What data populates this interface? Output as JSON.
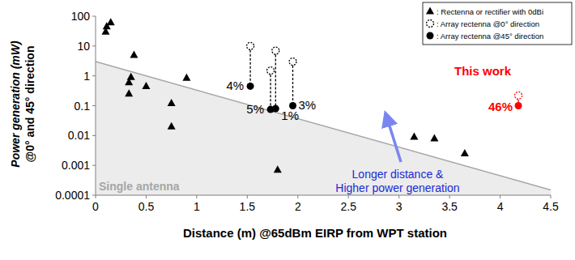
{
  "chart_data": {
    "type": "scatter",
    "x_label": "Distance (m) @65dBm EIRP from WPT station",
    "y_label": [
      "Power generation (mW)",
      "@0° and 45° direction"
    ],
    "xlim": [
      0,
      4.5
    ],
    "xticks": [
      0,
      0.5,
      1,
      1.5,
      2,
      2.5,
      3,
      3.5,
      4,
      4.5
    ],
    "ylim": [
      0.0001,
      100
    ],
    "yticks": [
      0.0001,
      0.001,
      0.01,
      0.1,
      1,
      10,
      100
    ],
    "log": "y",
    "grid": false,
    "legend": "top-right",
    "series": [
      {
        "name": ": Rectenna or rectifier with 0dBi",
        "marker": "triangle",
        "color": "#000000",
        "x": [
          0.1,
          0.11,
          0.15,
          0.38,
          0.33,
          0.35,
          0.33,
          0.5,
          0.9,
          0.75,
          0.75,
          1.8,
          3.15,
          3.35,
          3.65
        ],
        "values": [
          30,
          45,
          62,
          5,
          0.6,
          0.9,
          0.25,
          0.45,
          0.85,
          0.12,
          0.02,
          0.0007,
          0.009,
          0.008,
          0.0025
        ]
      },
      {
        "name": ": Array rectenna @0°   direction",
        "marker": "open-circle",
        "line_style": "dashed",
        "color": "#000000",
        "colors": [
          "#000000",
          "#000000",
          "#000000",
          "#000000",
          "#ff0000"
        ],
        "x": [
          1.53,
          1.73,
          1.78,
          1.95,
          4.18
        ],
        "values": [
          10,
          1.5,
          7,
          3,
          0.22
        ]
      },
      {
        "name": ": Array rectenna @45°  direction",
        "marker": "circle",
        "color": "#000000",
        "colors": [
          "#000000",
          "#000000",
          "#000000",
          "#000000",
          "#ff0000"
        ],
        "x": [
          1.53,
          1.73,
          1.78,
          1.95,
          4.18
        ],
        "values": [
          0.45,
          0.075,
          0.08,
          0.1,
          0.1
        ],
        "labels": [
          "4%",
          "5%",
          "1%",
          "3%",
          "46%"
        ]
      }
    ],
    "single_antenna": {
      "label": "Single antenna",
      "x": [
        0,
        4.5
      ],
      "values": [
        3,
        0.00015
      ]
    },
    "annotations": [
      {
        "text": "This work",
        "color": "#ff0000"
      },
      {
        "text": "Longer distance &",
        "color": "#1a2ad6"
      },
      {
        "text": "Higher power generation",
        "color": "#1a2ad6"
      }
    ]
  }
}
